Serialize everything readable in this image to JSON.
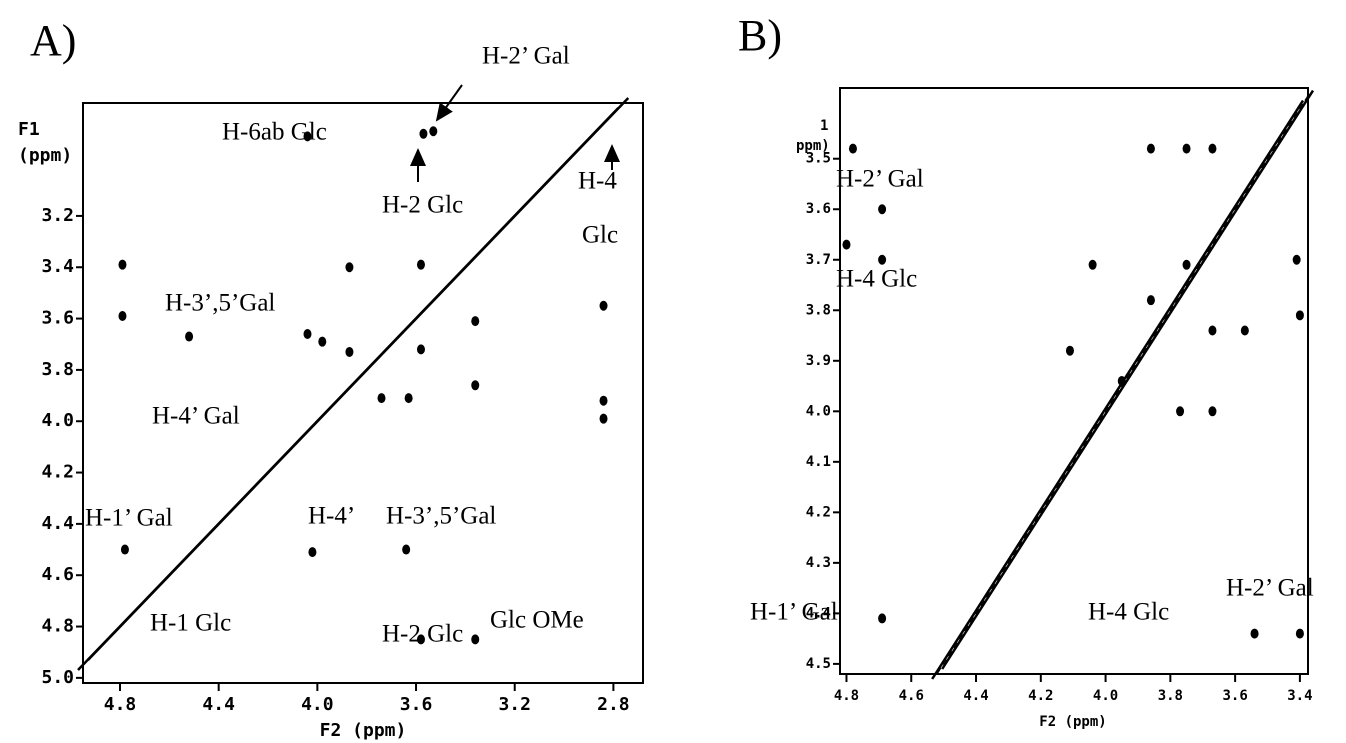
{
  "chart_data": [
    {
      "type": "scatter",
      "title": "A)",
      "xlabel": "F2 (ppm)",
      "ylabel": [
        "F1",
        "(ppm)"
      ],
      "xlim": [
        4.95,
        2.68
      ],
      "ylim": [
        2.76,
        5.02
      ],
      "xticks": [
        4.8,
        4.4,
        {
          "value": 4,
          "label": "4.0"
        },
        3.6,
        3.2,
        2.8
      ],
      "yticks": [
        3.2,
        3.4,
        3.6,
        3.8,
        {
          "value": 4,
          "label": "4.0"
        },
        4.2,
        4.4,
        4.6,
        4.8,
        {
          "value": 5,
          "label": "5.0"
        }
      ],
      "color": "#000000",
      "x": [
        4.79,
        4.79,
        4.52,
        3.87,
        4.04,
        3.57,
        3.53,
        4.04,
        3.98,
        3.87,
        3.58,
        3.58,
        3.36,
        3.36,
        3.63,
        3.74,
        2.84,
        2.84,
        2.84,
        4.02,
        3.64,
        3.58,
        3.36,
        4.78
      ],
      "values": [
        3.39,
        3.59,
        3.67,
        3.4,
        2.89,
        2.88,
        2.87,
        3.66,
        3.69,
        3.73,
        3.39,
        3.72,
        3.61,
        3.86,
        3.91,
        3.91,
        3.55,
        3.92,
        3.99,
        4.51,
        4.5,
        4.85,
        4.85,
        4.5
      ],
      "annotations": [
        "H-2’ Gal",
        "H-6ab Glc",
        "H-2 Glc",
        "H-4",
        "Glc",
        "H-3’,5’Gal",
        "H-4’ Gal",
        "H-1’ Gal",
        "H-1 Glc",
        "H-4’",
        "H-3’,5’Gal",
        "H-2 Glc",
        "Glc OMe"
      ]
    },
    {
      "type": "scatter",
      "title": "B)",
      "xlabel": "F2 (ppm)",
      "ylabel": [
        "1",
        "ppm)"
      ],
      "xlim": [
        4.82,
        3.375
      ],
      "ylim": [
        3.36,
        4.52
      ],
      "xticks": [
        4.8,
        4.6,
        4.4,
        4.2,
        {
          "value": 4,
          "label": "4.0"
        },
        3.8,
        3.6,
        3.4
      ],
      "yticks": [
        3.5,
        3.6,
        3.7,
        3.8,
        3.9,
        {
          "value": 4,
          "label": "4.0"
        },
        4.1,
        4.2,
        4.3,
        4.4,
        4.5
      ],
      "color": "#000000",
      "x": [
        4.78,
        4.8,
        4.69,
        4.69,
        3.86,
        3.75,
        3.67,
        4.04,
        3.86,
        3.75,
        3.67,
        3.57,
        3.4,
        3.41,
        3.95,
        3.77,
        3.67,
        4.11,
        3.54,
        3.4,
        4.69
      ],
      "values": [
        3.48,
        3.67,
        3.6,
        3.7,
        3.48,
        3.48,
        3.48,
        3.71,
        3.78,
        3.71,
        3.84,
        3.84,
        3.81,
        3.7,
        3.94,
        4.0,
        4.0,
        3.88,
        4.44,
        4.44,
        4.41
      ],
      "annotations": [
        "H-2’ Gal",
        "H-4 Glc",
        "H-1’ Gal",
        "H-4 Glc",
        "H-2’ Gal"
      ]
    }
  ]
}
